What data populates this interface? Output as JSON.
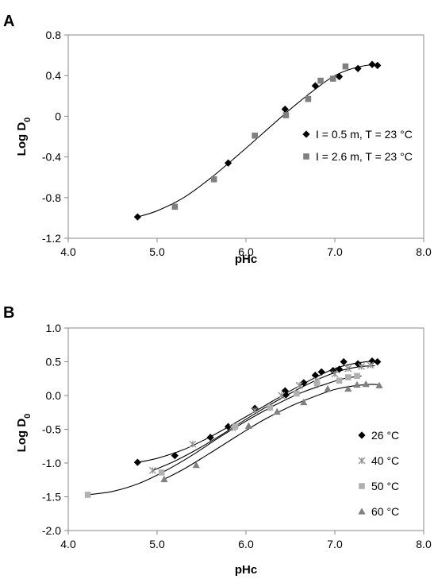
{
  "chart_data": [
    {
      "type": "scatter",
      "panel_label": "A",
      "xlabel": "pHc",
      "ylabel": "Log D",
      "ylabel_subscript": "0",
      "xlim": [
        4.0,
        8.0
      ],
      "ylim": [
        -1.2,
        0.8
      ],
      "x_ticks": [
        "4.0",
        "5.0",
        "6.0",
        "7.0",
        "8.0"
      ],
      "y_ticks": [
        "0.8",
        "0.4",
        "0",
        "-0.4",
        "-0.8",
        "-1.2"
      ],
      "legend_position": "right",
      "series": [
        {
          "name": "I = 0.5 m, T = 23 °C",
          "marker": "diamond",
          "color": "#000000",
          "points": [
            [
              4.78,
              -0.99
            ],
            [
              5.8,
              -0.46
            ],
            [
              6.44,
              0.07
            ],
            [
              6.78,
              0.3
            ],
            [
              7.05,
              0.39
            ],
            [
              7.26,
              0.47
            ],
            [
              7.42,
              0.51
            ],
            [
              7.48,
              0.5
            ]
          ]
        },
        {
          "name": "I = 2.6 m, T = 23 °C",
          "marker": "square",
          "color": "#808080",
          "points": [
            [
              5.2,
              -0.89
            ],
            [
              5.64,
              -0.62
            ],
            [
              6.1,
              -0.19
            ],
            [
              6.45,
              0.01
            ],
            [
              6.7,
              0.17
            ],
            [
              6.84,
              0.35
            ],
            [
              6.98,
              0.37
            ],
            [
              7.12,
              0.49
            ]
          ]
        }
      ],
      "fit_curve": {
        "color": "#000000",
        "points": [
          [
            4.78,
            -0.99
          ],
          [
            5.0,
            -0.93
          ],
          [
            5.3,
            -0.8
          ],
          [
            5.6,
            -0.61
          ],
          [
            5.9,
            -0.39
          ],
          [
            6.2,
            -0.16
          ],
          [
            6.5,
            0.07
          ],
          [
            6.8,
            0.28
          ],
          [
            7.0,
            0.4
          ],
          [
            7.2,
            0.47
          ],
          [
            7.4,
            0.505
          ],
          [
            7.5,
            0.5
          ]
        ]
      }
    },
    {
      "type": "scatter",
      "panel_label": "B",
      "xlabel": "pHc",
      "ylabel": "Log D",
      "ylabel_subscript": "0",
      "xlim": [
        4.0,
        8.0
      ],
      "ylim": [
        -2.0,
        1.0
      ],
      "x_ticks": [
        "4.0",
        "5.0",
        "6.0",
        "7.0",
        "8.0"
      ],
      "y_ticks": [
        "1.0",
        "0.5",
        "0.0",
        "-0.5",
        "-1.0",
        "-1.5",
        "-2.0"
      ],
      "legend_position": "right",
      "series": [
        {
          "name": "26 °C",
          "marker": "diamond",
          "color": "#000000",
          "points": [
            [
              4.78,
              -0.99
            ],
            [
              5.2,
              -0.89
            ],
            [
              5.6,
              -0.62
            ],
            [
              5.8,
              -0.46
            ],
            [
              6.1,
              -0.19
            ],
            [
              6.44,
              0.07
            ],
            [
              6.45,
              0.01
            ],
            [
              6.65,
              0.19
            ],
            [
              6.78,
              0.3
            ],
            [
              6.85,
              0.35
            ],
            [
              6.98,
              0.37
            ],
            [
              7.05,
              0.39
            ],
            [
              7.1,
              0.5
            ],
            [
              7.26,
              0.47
            ],
            [
              7.42,
              0.51
            ],
            [
              7.48,
              0.5
            ]
          ]
        },
        {
          "name": "40 °C",
          "marker": "star",
          "color": "#909090",
          "points": [
            [
              4.95,
              -1.11
            ],
            [
              5.4,
              -0.72
            ],
            [
              5.85,
              -0.48
            ],
            [
              6.1,
              -0.22
            ],
            [
              6.4,
              0.0
            ],
            [
              6.6,
              0.15
            ],
            [
              6.8,
              0.22
            ],
            [
              7.0,
              0.32
            ],
            [
              7.15,
              0.4
            ],
            [
              7.3,
              0.43
            ],
            [
              7.4,
              0.45
            ]
          ]
        },
        {
          "name": "50 °C",
          "marker": "square",
          "color": "#b0b0b0",
          "points": [
            [
              4.22,
              -1.47
            ],
            [
              5.05,
              -1.14
            ],
            [
              5.88,
              -0.46
            ],
            [
              6.27,
              -0.18
            ],
            [
              6.57,
              0.03
            ],
            [
              6.8,
              0.18
            ],
            [
              7.05,
              0.22
            ],
            [
              7.15,
              0.27
            ],
            [
              7.25,
              0.29
            ]
          ]
        },
        {
          "name": "60 °C",
          "marker": "triangle",
          "color": "#808080",
          "points": [
            [
              5.08,
              -1.24
            ],
            [
              5.44,
              -1.03
            ],
            [
              6.03,
              -0.45
            ],
            [
              6.35,
              -0.24
            ],
            [
              6.65,
              -0.1
            ],
            [
              6.92,
              0.1
            ],
            [
              7.15,
              0.1
            ],
            [
              7.25,
              0.16
            ],
            [
              7.35,
              0.17
            ],
            [
              7.5,
              0.15
            ]
          ]
        }
      ],
      "fit_curves": [
        {
          "color": "#000000",
          "points": [
            [
              4.78,
              -0.99
            ],
            [
              5.0,
              -0.93
            ],
            [
              5.3,
              -0.8
            ],
            [
              5.6,
              -0.61
            ],
            [
              5.9,
              -0.39
            ],
            [
              6.2,
              -0.16
            ],
            [
              6.5,
              0.07
            ],
            [
              6.8,
              0.28
            ],
            [
              7.0,
              0.4
            ],
            [
              7.2,
              0.47
            ],
            [
              7.4,
              0.505
            ],
            [
              7.5,
              0.5
            ]
          ]
        },
        {
          "color": "#000000",
          "points": [
            [
              4.95,
              -1.11
            ],
            [
              5.2,
              -0.97
            ],
            [
              5.5,
              -0.76
            ],
            [
              5.8,
              -0.52
            ],
            [
              6.1,
              -0.27
            ],
            [
              6.4,
              -0.04
            ],
            [
              6.7,
              0.17
            ],
            [
              6.9,
              0.29
            ],
            [
              7.1,
              0.38
            ],
            [
              7.3,
              0.43
            ],
            [
              7.45,
              0.44
            ]
          ]
        },
        {
          "color": "#000000",
          "points": [
            [
              4.22,
              -1.47
            ],
            [
              4.5,
              -1.42
            ],
            [
              4.8,
              -1.3
            ],
            [
              5.1,
              -1.11
            ],
            [
              5.4,
              -0.88
            ],
            [
              5.7,
              -0.62
            ],
            [
              6.0,
              -0.38
            ],
            [
              6.3,
              -0.16
            ],
            [
              6.6,
              0.03
            ],
            [
              6.9,
              0.17
            ],
            [
              7.1,
              0.25
            ],
            [
              7.3,
              0.29
            ]
          ]
        },
        {
          "color": "#000000",
          "points": [
            [
              5.08,
              -1.24
            ],
            [
              5.3,
              -1.09
            ],
            [
              5.6,
              -0.85
            ],
            [
              5.9,
              -0.6
            ],
            [
              6.2,
              -0.36
            ],
            [
              6.5,
              -0.16
            ],
            [
              6.8,
              0.0
            ],
            [
              7.0,
              0.09
            ],
            [
              7.2,
              0.14
            ],
            [
              7.4,
              0.165
            ],
            [
              7.5,
              0.16
            ]
          ]
        }
      ]
    }
  ]
}
